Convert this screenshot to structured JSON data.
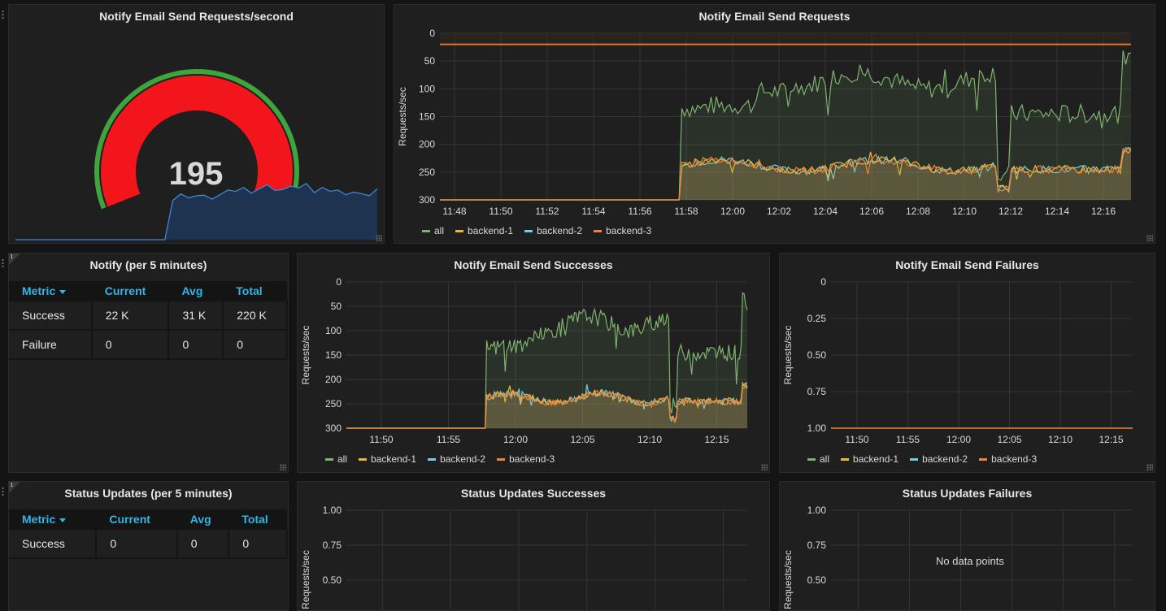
{
  "colors": {
    "all": "#7eb26d",
    "backend1": "#eab839",
    "backend2": "#6ed0e0",
    "backend3": "#ef843c",
    "threshold": "#e0752d",
    "gaugeRed": "#f2151b",
    "gaugeGreen": "#3ea43c",
    "sparkLine": "#3f86d1"
  },
  "legend": [
    "all",
    "backend-1",
    "backend-2",
    "backend-3"
  ],
  "gauge": {
    "title": "Notify Email Send Requests/second",
    "value": "195",
    "spark": [
      0,
      0,
      0,
      0,
      0,
      0,
      0,
      0,
      0,
      0,
      0,
      0,
      0,
      0,
      0,
      0,
      0,
      0,
      0,
      0,
      150,
      175,
      160,
      168,
      170,
      155,
      172,
      190,
      185,
      200,
      178,
      195,
      210,
      188,
      192,
      205,
      198,
      215,
      180,
      200,
      185,
      190,
      172,
      182,
      176,
      168,
      195
    ]
  },
  "requests": {
    "title": "Notify Email Send Requests",
    "ylabel": "Requests/sec",
    "yticks": [
      "300",
      "250",
      "200",
      "150",
      "100",
      "50",
      "0"
    ],
    "xticks": [
      "11:48",
      "11:50",
      "11:52",
      "11:54",
      "11:56",
      "11:58",
      "12:00",
      "12:02",
      "12:04",
      "12:06",
      "12:08",
      "12:10",
      "12:12",
      "12:14",
      "12:16"
    ]
  },
  "notify_table": {
    "title": "Notify (per 5 minutes)",
    "headers": [
      "Metric",
      "Current",
      "Avg",
      "Total"
    ],
    "rows": [
      [
        "Success",
        "22 K",
        "31 K",
        "220 K"
      ],
      [
        "Failure",
        "0",
        "0",
        "0"
      ]
    ]
  },
  "successes": {
    "title": "Notify Email Send Successes",
    "ylabel": "Requests/sec",
    "yticks": [
      "300",
      "250",
      "200",
      "150",
      "100",
      "50",
      "0"
    ],
    "xticks": [
      "11:50",
      "11:55",
      "12:00",
      "12:05",
      "12:10",
      "12:15"
    ]
  },
  "failures": {
    "title": "Notify Email Send Failures",
    "ylabel": "Requests/sec",
    "yticks": [
      "1.00",
      "0.75",
      "0.50",
      "0.25",
      "0"
    ],
    "xticks": [
      "11:50",
      "11:55",
      "12:00",
      "12:05",
      "12:10",
      "12:15"
    ]
  },
  "status_table": {
    "title": "Status Updates (per 5 minutes)",
    "headers": [
      "Metric",
      "Current",
      "Avg",
      "Total"
    ],
    "rows": [
      [
        "Success",
        "0",
        "0",
        "0"
      ]
    ]
  },
  "status_successes": {
    "title": "Status Updates Successes",
    "ylabel": "Requests/sec",
    "yticks": [
      "1.00",
      "0.75",
      "0.50"
    ]
  },
  "status_failures": {
    "title": "Status Updates Failures",
    "ylabel": "Requests/sec",
    "yticks": [
      "1.00",
      "0.75",
      "0.50"
    ],
    "nodata": "No data points"
  }
}
